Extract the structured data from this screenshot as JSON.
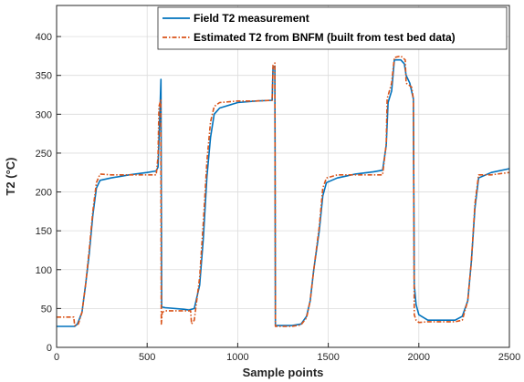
{
  "chart_data": {
    "type": "line",
    "xlabel": "Sample points",
    "ylabel": "T2 (°C)",
    "xlim": [
      0,
      2500
    ],
    "ylim": [
      0,
      440
    ],
    "xticks": [
      0,
      500,
      1000,
      1500,
      2000,
      2500
    ],
    "yticks": [
      0,
      50,
      100,
      150,
      200,
      250,
      300,
      350,
      400
    ],
    "grid": true,
    "legend_position": "top-right",
    "series": [
      {
        "name": "Field T2 measurement",
        "color": "#0072BD",
        "style": "solid",
        "points": [
          [
            0,
            27
          ],
          [
            100,
            27
          ],
          [
            115,
            30
          ],
          [
            140,
            45
          ],
          [
            160,
            80
          ],
          [
            180,
            120
          ],
          [
            200,
            170
          ],
          [
            220,
            205
          ],
          [
            240,
            215
          ],
          [
            300,
            218
          ],
          [
            400,
            222
          ],
          [
            500,
            225
          ],
          [
            550,
            227
          ],
          [
            560,
            232
          ],
          [
            570,
            300
          ],
          [
            576,
            345
          ],
          [
            580,
            52
          ],
          [
            600,
            51
          ],
          [
            700,
            49
          ],
          [
            730,
            48
          ],
          [
            760,
            50
          ],
          [
            790,
            80
          ],
          [
            810,
            140
          ],
          [
            830,
            220
          ],
          [
            850,
            270
          ],
          [
            870,
            300
          ],
          [
            900,
            308
          ],
          [
            1000,
            315
          ],
          [
            1100,
            317
          ],
          [
            1190,
            318
          ],
          [
            1195,
            360
          ],
          [
            1205,
            362
          ],
          [
            1208,
            28
          ],
          [
            1300,
            28
          ],
          [
            1350,
            30
          ],
          [
            1380,
            40
          ],
          [
            1400,
            60
          ],
          [
            1420,
            100
          ],
          [
            1450,
            150
          ],
          [
            1470,
            195
          ],
          [
            1490,
            212
          ],
          [
            1550,
            218
          ],
          [
            1650,
            223
          ],
          [
            1750,
            226
          ],
          [
            1800,
            228
          ],
          [
            1820,
            260
          ],
          [
            1830,
            315
          ],
          [
            1850,
            330
          ],
          [
            1865,
            370
          ],
          [
            1900,
            370
          ],
          [
            1920,
            365
          ],
          [
            1930,
            350
          ],
          [
            1950,
            340
          ],
          [
            1970,
            320
          ],
          [
            1975,
            80
          ],
          [
            1985,
            55
          ],
          [
            2000,
            42
          ],
          [
            2050,
            35
          ],
          [
            2200,
            35
          ],
          [
            2240,
            40
          ],
          [
            2270,
            60
          ],
          [
            2290,
            110
          ],
          [
            2310,
            180
          ],
          [
            2330,
            218
          ],
          [
            2400,
            225
          ],
          [
            2500,
            230
          ]
        ]
      },
      {
        "name": "Estimated T2 from BNFM (built from test bed data)",
        "color": "#D95319",
        "style": "dash-dot",
        "points": [
          [
            0,
            39
          ],
          [
            95,
            39
          ],
          [
            100,
            28
          ],
          [
            120,
            30
          ],
          [
            140,
            45
          ],
          [
            160,
            80
          ],
          [
            180,
            125
          ],
          [
            200,
            175
          ],
          [
            220,
            212
          ],
          [
            240,
            223
          ],
          [
            300,
            222
          ],
          [
            400,
            222
          ],
          [
            500,
            222
          ],
          [
            550,
            222
          ],
          [
            560,
            245
          ],
          [
            565,
            310
          ],
          [
            575,
            318
          ],
          [
            578,
            30
          ],
          [
            583,
            45
          ],
          [
            600,
            47
          ],
          [
            700,
            47
          ],
          [
            740,
            47
          ],
          [
            745,
            30
          ],
          [
            760,
            35
          ],
          [
            790,
            90
          ],
          [
            810,
            160
          ],
          [
            830,
            240
          ],
          [
            850,
            290
          ],
          [
            870,
            310
          ],
          [
            900,
            315
          ],
          [
            1000,
            317
          ],
          [
            1100,
            317
          ],
          [
            1190,
            318
          ],
          [
            1195,
            363
          ],
          [
            1205,
            366
          ],
          [
            1208,
            27
          ],
          [
            1300,
            27
          ],
          [
            1350,
            29
          ],
          [
            1380,
            38
          ],
          [
            1400,
            60
          ],
          [
            1420,
            100
          ],
          [
            1450,
            155
          ],
          [
            1470,
            205
          ],
          [
            1490,
            218
          ],
          [
            1550,
            222
          ],
          [
            1650,
            222
          ],
          [
            1750,
            222
          ],
          [
            1800,
            222
          ],
          [
            1820,
            262
          ],
          [
            1825,
            320
          ],
          [
            1850,
            340
          ],
          [
            1865,
            373
          ],
          [
            1900,
            375
          ],
          [
            1925,
            370
          ],
          [
            1930,
            340
          ],
          [
            1960,
            335
          ],
          [
            1970,
            320
          ],
          [
            1975,
            42
          ],
          [
            1985,
            35
          ],
          [
            2000,
            32
          ],
          [
            2050,
            33
          ],
          [
            2200,
            33
          ],
          [
            2240,
            35
          ],
          [
            2270,
            60
          ],
          [
            2290,
            110
          ],
          [
            2310,
            185
          ],
          [
            2330,
            222
          ],
          [
            2400,
            222
          ],
          [
            2500,
            225
          ]
        ]
      }
    ]
  }
}
